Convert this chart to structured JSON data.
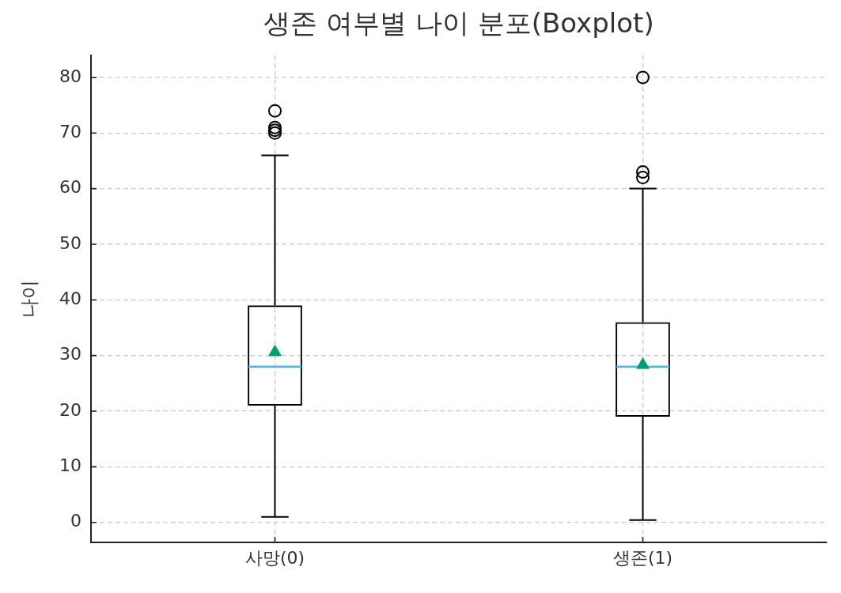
{
  "chart_data": {
    "type": "box",
    "title": "생존 여부별 나이 분포(Boxplot)",
    "ylabel": "나이",
    "categories": [
      "사망(0)",
      "생존(1)"
    ],
    "series": [
      {
        "color": "#000000",
        "boxes": [
          {
            "low": 1,
            "q1": 21,
            "median": 28,
            "q3": 39,
            "high": 66,
            "mean": 30.6,
            "outliers": [
              70,
              70.5,
              71,
              74
            ]
          },
          {
            "low": 0.4,
            "q1": 19,
            "median": 28,
            "q3": 36,
            "high": 60,
            "mean": 28.3,
            "outliers": [
              62,
              63,
              80
            ]
          }
        ]
      }
    ],
    "ylim": [
      -3.6,
      84
    ],
    "yticks": [
      0,
      10,
      20,
      30,
      40,
      50,
      60,
      70,
      80
    ],
    "grid": true
  }
}
